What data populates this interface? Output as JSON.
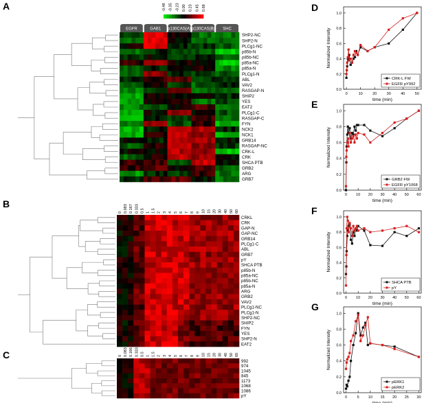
{
  "panel_letters": {
    "A": "A",
    "B": "B",
    "C": "C",
    "D": "D",
    "E": "E",
    "F": "F",
    "G": "G"
  },
  "colors": {
    "red": "#d41e1e",
    "black": "#111111",
    "heat_pos": "#ff0000",
    "heat_neg": "#00dd00"
  },
  "panel_a": {
    "scale_values": [
      "-0.48",
      "-0.35",
      "-0.23",
      "0.00",
      "0.23",
      "0.45",
      "0.68"
    ],
    "columns": [
      "EGFR",
      "GAB1",
      "p130CAS(A)",
      "p130CAS(B)",
      "SHC"
    ],
    "rows": [
      "SHP2-NC",
      "SHP2-N",
      "PLCg1-NC",
      "p85b-N",
      "p85b-NC",
      "p85a-NC",
      "p85a-N",
      "PLCg1-N",
      "ABL",
      "VAV2",
      "RASGAP-N",
      "SHIP2",
      "YES",
      "EAT2",
      "PLCg1-C",
      "RASGAP-C",
      "FYN",
      "NCK2",
      "NCK1",
      "GRB14",
      "RASGAP-NC",
      "CRK-L",
      "CRK",
      "SHCA PTB",
      "GRB2",
      "ARG",
      "GRB7"
    ]
  },
  "panel_b": {
    "times": [
      "0",
      "0.083",
      "0.167",
      "0.333",
      "0.5",
      "1",
      "1.5",
      "2",
      "3",
      "4",
      "5",
      "6",
      "7",
      "8",
      "9",
      "10",
      "15",
      "20",
      "30",
      "40",
      "50",
      "60"
    ],
    "rows": [
      "CRKL",
      "CRK",
      "GAP-N",
      "GAP-NC",
      "GRB14",
      "PLCg1-C",
      "ABL",
      "GRB7",
      "pY",
      "SHCA PTB",
      "p85b-N",
      "p85a-NC",
      "p85b-NC",
      "p85a-N",
      "ARG",
      "GRB2",
      "VAV2",
      "PLCg1-NC",
      "PLCg1-N",
      "SHP2-NC",
      "SHIP2",
      "FYN",
      "YES",
      "SHP2-N",
      "EAT2"
    ]
  },
  "panel_c": {
    "times": [
      "0",
      "0.083",
      "0.166",
      "0.333",
      "0.5",
      "1",
      "1.5",
      "2",
      "3",
      "4",
      "5",
      "6",
      "7",
      "8",
      "9",
      "10",
      "15",
      "20",
      "30",
      "40",
      "50",
      "60"
    ],
    "rows": [
      "992",
      "974",
      "1045",
      "845",
      "1173",
      "1068",
      "1086",
      "pY"
    ]
  },
  "chart_data": [
    {
      "type": "line",
      "panel": "D",
      "xlabel": "time (min)",
      "ylabel": "Normalized Intensity",
      "xticks": [
        "0",
        "10",
        "20",
        "30",
        "40",
        "50"
      ],
      "yticks": [
        "0.0",
        "0.2",
        "0.4",
        "0.6",
        "0.8",
        "1.0"
      ],
      "xlim": [
        -2,
        53
      ],
      "ylim": [
        0,
        1.08
      ],
      "legend_position": "bottom-right",
      "series": [
        {
          "name": "CRK-L FW",
          "color": "black",
          "x": [
            0,
            0.25,
            0.5,
            1,
            1.5,
            2,
            3,
            4,
            5,
            6,
            7,
            8,
            10,
            15,
            20,
            30,
            40,
            50
          ],
          "y": [
            0.15,
            0.25,
            0.3,
            0.4,
            0.38,
            0.45,
            0.32,
            0.35,
            0.4,
            0.42,
            0.5,
            0.45,
            0.55,
            0.5,
            0.55,
            0.6,
            0.78,
            1.0
          ]
        },
        {
          "name": "EGFR pY992",
          "color": "red",
          "x": [
            0,
            0.25,
            0.5,
            1,
            1.5,
            2,
            3,
            4,
            5,
            6,
            7,
            8,
            10,
            15,
            20,
            30,
            40,
            50
          ],
          "y": [
            0.2,
            0.25,
            0.35,
            0.42,
            0.52,
            0.38,
            0.4,
            0.35,
            0.45,
            0.5,
            0.48,
            0.45,
            0.58,
            0.5,
            0.55,
            0.78,
            0.93,
            1.0
          ]
        }
      ]
    },
    {
      "type": "line",
      "panel": "E",
      "xlabel": "time (min)",
      "ylabel": "Normalized Intensity",
      "xticks": [
        "0",
        "10",
        "20",
        "30",
        "40",
        "50",
        "60"
      ],
      "yticks": [
        "0.0",
        "0.2",
        "0.4",
        "0.6",
        "0.8",
        "1.0"
      ],
      "xlim": [
        -2,
        62
      ],
      "ylim": [
        0,
        1.08
      ],
      "legend_position": "bottom-right",
      "series": [
        {
          "name": "GRB2 FW",
          "color": "black",
          "x": [
            0,
            0.25,
            0.5,
            1,
            1.5,
            2,
            3,
            4,
            5,
            6,
            7,
            8,
            9,
            10,
            15,
            20,
            30,
            40,
            50,
            60
          ],
          "y": [
            0,
            0.35,
            0.55,
            0.7,
            0.8,
            0.72,
            0.78,
            0.65,
            0.72,
            0.7,
            0.8,
            0.75,
            0.82,
            0.82,
            0.82,
            0.75,
            0.68,
            0.78,
            0.9,
            1.0
          ]
        },
        {
          "name": "EGFR pY1068",
          "color": "red",
          "x": [
            0,
            0.25,
            0.5,
            1,
            1.5,
            2,
            3,
            4,
            5,
            6,
            7,
            8,
            9,
            10,
            15,
            20,
            30,
            40,
            50,
            60
          ],
          "y": [
            0.05,
            0.42,
            0.5,
            0.6,
            0.65,
            0.55,
            0.72,
            0.6,
            0.65,
            0.68,
            0.6,
            0.7,
            0.65,
            0.72,
            0.7,
            0.6,
            0.72,
            0.85,
            0.9,
            1.0
          ]
        }
      ]
    },
    {
      "type": "line",
      "panel": "F",
      "xlabel": "time (min)",
      "ylabel": "Normalized Intensity",
      "xticks": [
        "0",
        "10",
        "20",
        "30",
        "40",
        "50",
        "60"
      ],
      "yticks": [
        "0.0",
        "0.2",
        "0.4",
        "0.6",
        "0.8",
        "1.0"
      ],
      "xlim": [
        -2,
        62
      ],
      "ylim": [
        0,
        1.08
      ],
      "legend_position": "bottom-right",
      "series": [
        {
          "name": "SHCA PTB",
          "color": "black",
          "x": [
            0,
            0.25,
            0.5,
            1,
            1.5,
            2,
            3,
            4,
            5,
            6,
            7,
            8,
            9,
            10,
            15,
            20,
            30,
            40,
            50,
            60
          ],
          "y": [
            0.25,
            0.35,
            0.55,
            0.75,
            0.82,
            0.88,
            0.9,
            0.7,
            0.65,
            0.8,
            0.75,
            0.85,
            0.82,
            0.88,
            0.82,
            0.63,
            0.62,
            0.8,
            0.75,
            0.85
          ]
        },
        {
          "name": "pY",
          "color": "red",
          "x": [
            0,
            0.25,
            0.5,
            1,
            1.5,
            2,
            3,
            4,
            5,
            6,
            7,
            8,
            9,
            10,
            15,
            20,
            30,
            40,
            50,
            60
          ],
          "y": [
            0.1,
            0.5,
            0.85,
            1.0,
            0.95,
            0.8,
            0.92,
            0.85,
            0.75,
            0.88,
            0.82,
            0.85,
            0.88,
            0.82,
            0.85,
            0.8,
            0.82,
            0.85,
            0.88,
            0.8
          ]
        }
      ]
    },
    {
      "type": "line",
      "panel": "G",
      "xlabel": "time (min)",
      "ylabel": "Normalized Intensity",
      "xticks": [
        "0",
        "5",
        "10",
        "15",
        "20",
        "25",
        "30"
      ],
      "yticks": [
        "0.0",
        "0.2",
        "0.4",
        "0.6",
        "0.8",
        "1.0"
      ],
      "xlim": [
        -1,
        31
      ],
      "ylim": [
        0,
        1.08
      ],
      "legend_position": "bottom-right",
      "series": [
        {
          "name": "pERK1",
          "color": "black",
          "x": [
            0,
            0.25,
            0.5,
            1,
            1.5,
            2,
            3,
            4,
            5,
            6,
            7,
            8,
            9,
            10,
            15,
            20,
            30
          ],
          "y": [
            0.05,
            0.1,
            0.08,
            0.15,
            0.2,
            0.4,
            0.6,
            0.75,
            1.0,
            0.72,
            0.82,
            0.88,
            0.6,
            0.62,
            0.6,
            0.58,
            0.45
          ]
        },
        {
          "name": "pERK2",
          "color": "red",
          "x": [
            0,
            0.25,
            0.5,
            1,
            1.5,
            2,
            3,
            4,
            5,
            6,
            7,
            8,
            9,
            10,
            15,
            20,
            30
          ],
          "y": [
            0.3,
            0.38,
            0.42,
            0.45,
            0.5,
            0.65,
            0.72,
            0.9,
            0.98,
            0.65,
            0.72,
            0.85,
            0.95,
            0.62,
            0.6,
            0.55,
            0.45
          ]
        }
      ]
    }
  ]
}
